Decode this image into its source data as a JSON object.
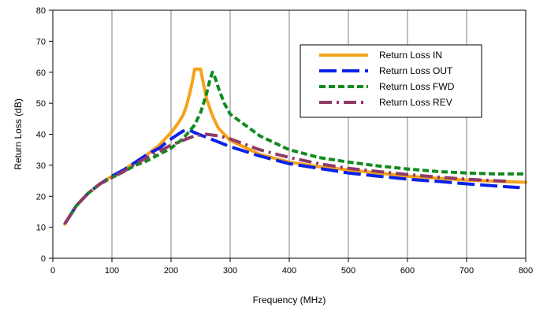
{
  "chart_data": {
    "type": "line",
    "title": "",
    "xlabel": "Frequency (MHz)",
    "ylabel": "Return Loss (dB)",
    "xlim": [
      0,
      800
    ],
    "ylim": [
      0,
      80
    ],
    "xticks": [
      0,
      100,
      200,
      300,
      400,
      500,
      600,
      700,
      800
    ],
    "yticks": [
      0,
      10,
      20,
      30,
      40,
      50,
      60,
      70,
      80
    ],
    "x_tick_labels": [
      "0",
      "100",
      "200",
      "300",
      "400",
      "500",
      "600",
      "700",
      "800"
    ],
    "y_tick_labels": [
      "0",
      "10",
      "20",
      "30",
      "40",
      "50",
      "60",
      "70",
      "80"
    ],
    "grid": "vertical",
    "legend_position": "top-right",
    "series": [
      {
        "name": "Return Loss IN",
        "color": "#F7A21B",
        "style": "solid",
        "x": [
          20,
          40,
          60,
          80,
          100,
          120,
          140,
          160,
          180,
          200,
          210,
          220,
          225,
          230,
          235,
          240,
          245,
          250,
          255,
          260,
          270,
          280,
          300,
          350,
          400,
          450,
          500,
          550,
          600,
          650,
          700,
          750,
          800
        ],
        "y": [
          11,
          17,
          21,
          24,
          26.5,
          28.5,
          31,
          33.5,
          36.5,
          40.5,
          43,
          46,
          48.5,
          52,
          56,
          61,
          61,
          61,
          56,
          51.5,
          46,
          42,
          38,
          33.5,
          31,
          29.5,
          28.5,
          27.5,
          26.5,
          25.8,
          25.2,
          24.8,
          24.5
        ]
      },
      {
        "name": "Return Loss OUT",
        "color": "#0A22E8",
        "style": "long-dash",
        "x": [
          20,
          40,
          60,
          80,
          100,
          120,
          140,
          160,
          180,
          200,
          220,
          230,
          240,
          260,
          280,
          300,
          350,
          400,
          450,
          500,
          550,
          600,
          650,
          700,
          750,
          790
        ],
        "y": [
          11,
          17,
          21,
          24,
          26.5,
          28.5,
          31,
          33.5,
          35.5,
          38.5,
          41,
          41.5,
          40.5,
          39,
          37.5,
          36,
          33,
          30.5,
          29,
          27.5,
          26.5,
          25.5,
          24.8,
          24,
          23.3,
          22.8
        ]
      },
      {
        "name": "Return Loss FWD",
        "color": "#128A1F",
        "style": "dash",
        "x": [
          20,
          40,
          60,
          80,
          100,
          120,
          140,
          160,
          180,
          200,
          220,
          240,
          250,
          260,
          265,
          270,
          275,
          280,
          290,
          300,
          350,
          400,
          450,
          500,
          550,
          600,
          650,
          700,
          750,
          800
        ],
        "y": [
          11,
          17,
          21,
          24,
          26,
          28,
          30,
          31.5,
          33.5,
          35.5,
          38.5,
          43,
          47,
          53,
          57,
          60,
          58,
          55,
          50,
          46.5,
          39.5,
          35,
          32.5,
          31,
          29.8,
          28.8,
          28,
          27.5,
          27.2,
          27.2
        ]
      },
      {
        "name": "Return Loss REV",
        "color": "#8F3A68",
        "style": "dash-dot",
        "x": [
          20,
          40,
          60,
          80,
          100,
          120,
          140,
          160,
          180,
          200,
          220,
          240,
          260,
          280,
          300,
          350,
          400,
          450,
          500,
          550,
          600,
          650,
          700,
          750,
          770
        ],
        "y": [
          11,
          17,
          21,
          24,
          26,
          28,
          30.5,
          32.5,
          34.5,
          36.5,
          38,
          39.5,
          40,
          39.5,
          38.5,
          35,
          32.5,
          30.5,
          29,
          28,
          27,
          26.2,
          25.5,
          25,
          24.8
        ]
      }
    ]
  }
}
